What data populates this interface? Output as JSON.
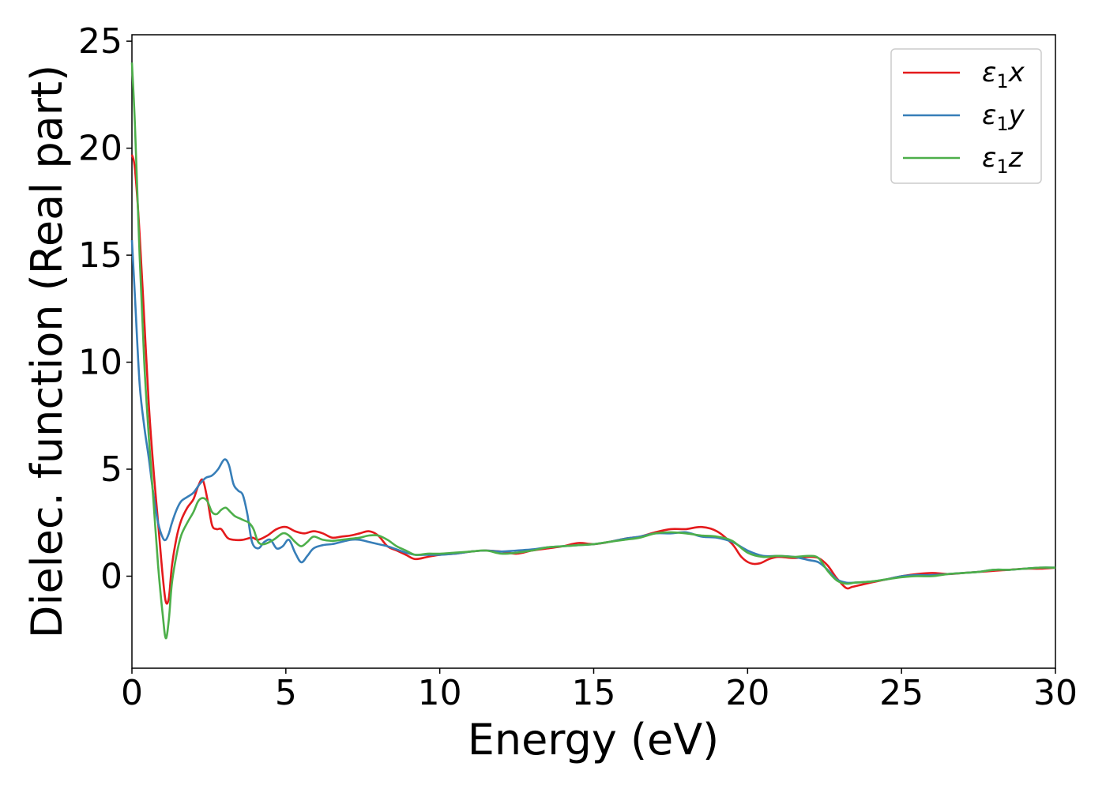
{
  "chart_data": {
    "type": "line",
    "title": "",
    "xlabel": "Energy (eV)",
    "ylabel": "Dielec. function (Real part)",
    "xlim": [
      0,
      30
    ],
    "ylim": [
      -4.3,
      25.3
    ],
    "xticks": [
      0,
      5,
      10,
      15,
      20,
      25,
      30
    ],
    "yticks": [
      0,
      5,
      10,
      15,
      20,
      25
    ],
    "grid": false,
    "legend_position": "top-right",
    "series": [
      {
        "name": "ε1x",
        "legend": {
          "base": "ε",
          "sub": "1",
          "suffix": "x"
        },
        "color": "#e41a1c",
        "x": [
          0,
          0.1,
          0.25,
          0.4,
          0.55,
          0.7,
          0.85,
          1.0,
          1.1,
          1.2,
          1.3,
          1.45,
          1.6,
          1.8,
          2.0,
          2.15,
          2.3,
          2.45,
          2.6,
          2.75,
          2.9,
          3.1,
          3.3,
          3.6,
          3.9,
          4.1,
          4.4,
          4.7,
          5.0,
          5.3,
          5.6,
          5.9,
          6.2,
          6.5,
          6.8,
          7.1,
          7.4,
          7.7,
          8.0,
          8.3,
          8.6,
          8.9,
          9.2,
          9.6,
          10.0,
          10.5,
          11.0,
          11.5,
          12.0,
          12.5,
          13.0,
          13.5,
          14.0,
          14.5,
          15.0,
          15.5,
          16.0,
          16.5,
          17.0,
          17.5,
          18.0,
          18.5,
          19.0,
          19.5,
          19.8,
          20.1,
          20.4,
          20.7,
          21.0,
          21.5,
          22.0,
          22.3,
          22.6,
          22.9,
          23.2,
          23.4,
          23.7,
          24.0,
          24.5,
          25.0,
          25.5,
          26.0,
          26.5,
          27.0,
          27.5,
          28.0,
          28.5,
          29.0,
          29.5,
          30.0
        ],
        "y": [
          19.7,
          19.0,
          16.0,
          12.0,
          8.0,
          5.0,
          2.5,
          0.0,
          -1.2,
          -1.0,
          0.5,
          1.8,
          2.6,
          3.2,
          3.6,
          4.2,
          4.5,
          3.6,
          2.4,
          2.2,
          2.2,
          1.8,
          1.7,
          1.7,
          1.8,
          1.7,
          1.9,
          2.2,
          2.3,
          2.1,
          2.0,
          2.1,
          2.0,
          1.8,
          1.85,
          1.9,
          2.0,
          2.1,
          1.9,
          1.4,
          1.2,
          1.0,
          0.8,
          0.9,
          1.0,
          1.05,
          1.15,
          1.2,
          1.15,
          1.05,
          1.2,
          1.3,
          1.4,
          1.55,
          1.5,
          1.6,
          1.75,
          1.85,
          2.05,
          2.2,
          2.2,
          2.3,
          2.1,
          1.5,
          0.9,
          0.6,
          0.6,
          0.8,
          0.9,
          0.85,
          0.9,
          0.85,
          0.5,
          -0.1,
          -0.55,
          -0.5,
          -0.4,
          -0.3,
          -0.15,
          0.0,
          0.1,
          0.15,
          0.1,
          0.15,
          0.2,
          0.25,
          0.3,
          0.35,
          0.35,
          0.4
        ]
      },
      {
        "name": "ε1y",
        "legend": {
          "base": "ε",
          "sub": "1",
          "suffix": "y"
        },
        "color": "#377eb8",
        "x": [
          0,
          0.1,
          0.25,
          0.4,
          0.55,
          0.7,
          0.85,
          1.0,
          1.1,
          1.2,
          1.3,
          1.45,
          1.6,
          1.8,
          2.0,
          2.2,
          2.4,
          2.6,
          2.8,
          3.0,
          3.15,
          3.3,
          3.45,
          3.6,
          3.75,
          3.9,
          4.1,
          4.3,
          4.5,
          4.7,
          4.9,
          5.1,
          5.3,
          5.5,
          5.7,
          5.9,
          6.2,
          6.5,
          6.8,
          7.1,
          7.4,
          7.7,
          8.0,
          8.3,
          8.6,
          8.9,
          9.2,
          9.6,
          10.0,
          10.5,
          11.0,
          11.5,
          12.0,
          12.5,
          13.0,
          13.5,
          14.0,
          14.5,
          15.0,
          15.5,
          16.0,
          16.5,
          17.0,
          17.5,
          18.0,
          18.5,
          19.0,
          19.5,
          20.0,
          20.5,
          21.0,
          21.5,
          22.0,
          22.3,
          22.6,
          22.9,
          23.2,
          23.5,
          24.0,
          24.5,
          25.0,
          25.5,
          26.0,
          26.5,
          27.0,
          27.5,
          28.0,
          28.5,
          29.0,
          29.5,
          30.0
        ],
        "y": [
          15.7,
          13.0,
          9.0,
          7.0,
          5.5,
          3.8,
          2.5,
          1.8,
          1.7,
          2.0,
          2.5,
          3.1,
          3.5,
          3.7,
          3.9,
          4.3,
          4.6,
          4.7,
          5.0,
          5.45,
          5.2,
          4.3,
          4.0,
          3.8,
          2.9,
          1.6,
          1.3,
          1.6,
          1.7,
          1.3,
          1.4,
          1.7,
          1.1,
          0.65,
          0.95,
          1.3,
          1.45,
          1.5,
          1.6,
          1.7,
          1.7,
          1.6,
          1.5,
          1.4,
          1.25,
          1.1,
          1.0,
          1.0,
          1.0,
          1.05,
          1.15,
          1.2,
          1.15,
          1.2,
          1.25,
          1.35,
          1.4,
          1.45,
          1.5,
          1.6,
          1.75,
          1.85,
          2.0,
          2.0,
          2.05,
          1.85,
          1.8,
          1.6,
          1.2,
          0.95,
          0.95,
          0.9,
          0.75,
          0.65,
          0.3,
          -0.15,
          -0.3,
          -0.3,
          -0.25,
          -0.15,
          0.0,
          0.05,
          0.05,
          0.1,
          0.15,
          0.2,
          0.3,
          0.3,
          0.35,
          0.4,
          0.4
        ]
      },
      {
        "name": "ε1z",
        "legend": {
          "base": "ε",
          "sub": "1",
          "suffix": "z"
        },
        "color": "#4daf4a",
        "x": [
          0,
          0.1,
          0.25,
          0.4,
          0.55,
          0.7,
          0.85,
          1.0,
          1.1,
          1.2,
          1.3,
          1.45,
          1.6,
          1.8,
          2.0,
          2.15,
          2.3,
          2.45,
          2.6,
          2.75,
          2.9,
          3.05,
          3.2,
          3.35,
          3.5,
          3.65,
          3.8,
          3.95,
          4.1,
          4.3,
          4.6,
          4.9,
          5.1,
          5.3,
          5.5,
          5.7,
          5.9,
          6.2,
          6.5,
          6.8,
          7.1,
          7.4,
          7.7,
          8.0,
          8.3,
          8.6,
          8.9,
          9.2,
          9.6,
          10.0,
          10.5,
          11.0,
          11.5,
          12.0,
          12.5,
          13.0,
          13.5,
          14.0,
          14.5,
          15.0,
          15.5,
          16.0,
          16.5,
          17.0,
          17.5,
          18.0,
          18.5,
          19.0,
          19.5,
          20.0,
          20.5,
          21.0,
          21.5,
          22.0,
          22.3,
          22.6,
          22.9,
          23.2,
          23.5,
          24.0,
          24.5,
          25.0,
          25.5,
          26.0,
          26.5,
          27.0,
          27.5,
          28.0,
          28.5,
          29.0,
          29.5,
          30.0
        ],
        "y": [
          24.0,
          21.0,
          15.0,
          10.0,
          6.5,
          3.5,
          0.5,
          -1.8,
          -2.9,
          -2.0,
          -0.3,
          1.0,
          1.9,
          2.5,
          3.0,
          3.5,
          3.65,
          3.5,
          3.0,
          2.9,
          3.1,
          3.2,
          3.0,
          2.8,
          2.7,
          2.6,
          2.5,
          2.2,
          1.6,
          1.5,
          1.7,
          2.0,
          1.9,
          1.6,
          1.4,
          1.6,
          1.85,
          1.7,
          1.65,
          1.7,
          1.75,
          1.8,
          1.9,
          1.9,
          1.7,
          1.4,
          1.2,
          1.0,
          1.05,
          1.05,
          1.1,
          1.15,
          1.2,
          1.05,
          1.1,
          1.2,
          1.35,
          1.4,
          1.45,
          1.5,
          1.6,
          1.7,
          1.8,
          2.0,
          2.05,
          2.0,
          1.9,
          1.85,
          1.65,
          1.1,
          0.9,
          0.95,
          0.9,
          0.95,
          0.85,
          0.25,
          -0.2,
          -0.35,
          -0.3,
          -0.25,
          -0.15,
          -0.05,
          0.0,
          0.0,
          0.1,
          0.15,
          0.2,
          0.3,
          0.3,
          0.35,
          0.4,
          0.4
        ]
      }
    ]
  }
}
